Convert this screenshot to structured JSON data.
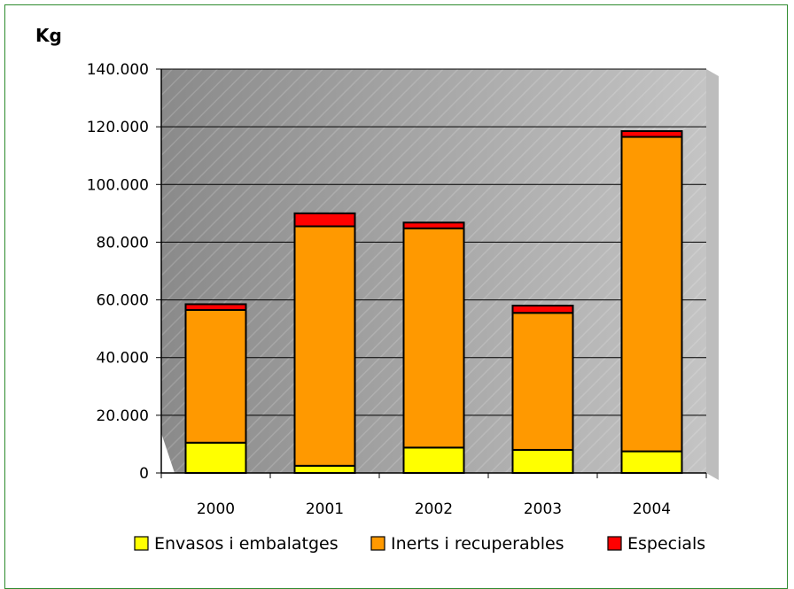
{
  "chart_data": {
    "type": "bar",
    "stacked": true,
    "ylabel": "Kg",
    "ylim": [
      0,
      140000
    ],
    "yticks": [
      "0",
      "20.000",
      "40.000",
      "60.000",
      "80.000",
      "100.000",
      "120.000",
      "140.000"
    ],
    "categories": [
      "2000",
      "2001",
      "2002",
      "2003",
      "2004"
    ],
    "series": [
      {
        "name": "Envasos i embalatges",
        "color": "#ffff00",
        "values": [
          10500,
          2500,
          8800,
          8000,
          7500
        ]
      },
      {
        "name": "Inerts i recuperables",
        "color": "#ff9900",
        "values": [
          46000,
          83000,
          76000,
          47500,
          109000
        ]
      },
      {
        "name": "Especials",
        "color": "#ff0000",
        "values": [
          2000,
          4500,
          2000,
          2500,
          2000
        ]
      }
    ],
    "grid": true,
    "legend_position": "bottom"
  }
}
